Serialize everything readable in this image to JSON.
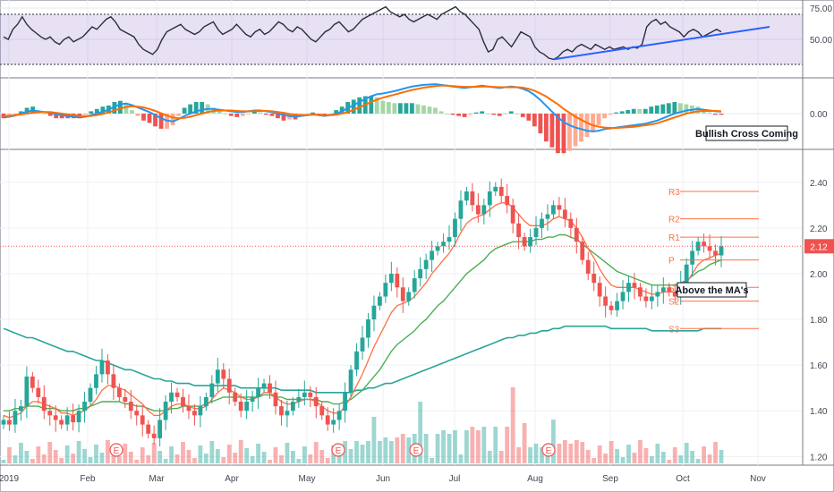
{
  "chart_data": {
    "type": "candlestick",
    "x_axis": {
      "ticks": [
        "2019",
        "Feb",
        "Mar",
        "Apr",
        "May",
        "Jun",
        "Jul",
        "Aug",
        "Sep",
        "Oct",
        "Nov"
      ]
    },
    "panels": [
      {
        "id": "rsi",
        "ylim": [
          20,
          80
        ],
        "ticks": [
          "75.00",
          "50.00"
        ],
        "tick_values": [
          75,
          50
        ],
        "band": [
          30,
          70
        ],
        "series": [
          {
            "color": "#2a2e39",
            "values": [
              52,
              50,
              58,
              62,
              68,
              62,
              58,
              55,
              52,
              50,
              52,
              48,
              46,
              50,
              52,
              48,
              50,
              52,
              56,
              60,
              58,
              62,
              66,
              68,
              64,
              58,
              56,
              54,
              52,
              46,
              42,
              40,
              38,
              42,
              50,
              56,
              58,
              60,
              62,
              58,
              56,
              54,
              56,
              60,
              62,
              64,
              58,
              54,
              56,
              58,
              62,
              58,
              54,
              52,
              56,
              58,
              54,
              56,
              60,
              64,
              62,
              58,
              56,
              60,
              58,
              54,
              50,
              48,
              52,
              56,
              58,
              62,
              64,
              60,
              56,
              58,
              62,
              66,
              68,
              70,
              72,
              74,
              76,
              72,
              70,
              68,
              70,
              66,
              64,
              66,
              68,
              70,
              68,
              66,
              70,
              72,
              74,
              76,
              72,
              70,
              66,
              62,
              58,
              48,
              40,
              42,
              50,
              52,
              48,
              44,
              50,
              56,
              54,
              52,
              44,
              40,
              38,
              35,
              34,
              36,
              40,
              42,
              40,
              44,
              46,
              44,
              42,
              46,
              44,
              42,
              44,
              42,
              43,
              44,
              42,
              44,
              43,
              46,
              60,
              64,
              66,
              62,
              64,
              60,
              58,
              56,
              52,
              56,
              58,
              56,
              52,
              54,
              56,
              58,
              56
            ]
          }
        ],
        "trendline": {
          "color": "#2962ff",
          "from": [
            118,
            34
          ],
          "to": [
            158,
            60
          ]
        }
      },
      {
        "id": "macd",
        "ticks": [
          "0.00"
        ],
        "tick_values": [
          0
        ],
        "ylim": [
          -0.09,
          0.09
        ],
        "series": [
          {
            "color": "#2196f3",
            "values": [
              -0.01,
              -0.008,
              -0.005,
              0.0,
              0.005,
              0.008,
              0.006,
              0.004,
              0.002,
              -0.002,
              -0.004,
              -0.006,
              -0.008,
              -0.01,
              -0.008,
              -0.004,
              0.0,
              0.005,
              0.01,
              0.018,
              0.024,
              0.026,
              0.022,
              0.016,
              0.01,
              0.004,
              -0.004,
              -0.012,
              -0.018,
              -0.02,
              -0.014,
              -0.006,
              0.0,
              0.006,
              0.01,
              0.012,
              0.012,
              0.01,
              0.008,
              0.006,
              0.004,
              0.004,
              0.006,
              0.008,
              0.008,
              0.006,
              0.004,
              0.0,
              -0.004,
              -0.006,
              -0.008,
              -0.006,
              -0.004,
              -0.002,
              -0.004,
              -0.006,
              -0.004,
              0.0,
              0.006,
              0.014,
              0.022,
              0.03,
              0.038,
              0.045,
              0.05,
              0.052,
              0.055,
              0.058,
              0.062,
              0.066,
              0.07,
              0.072,
              0.074,
              0.075,
              0.076,
              0.074,
              0.072,
              0.07,
              0.068,
              0.066,
              0.068,
              0.07,
              0.072,
              0.07,
              0.068,
              0.066,
              0.068,
              0.07,
              0.068,
              0.064,
              0.058,
              0.048,
              0.035,
              0.02,
              0.005,
              -0.01,
              -0.022,
              -0.03,
              -0.036,
              -0.04,
              -0.044,
              -0.046,
              -0.044,
              -0.04,
              -0.038,
              -0.036,
              -0.034,
              -0.032,
              -0.03,
              -0.028,
              -0.026,
              -0.022,
              -0.018,
              -0.012,
              -0.006,
              0.0,
              0.004,
              0.008,
              0.01,
              0.012,
              0.01,
              0.008,
              0.006,
              0.005
            ]
          },
          {
            "color": "#ff6d00",
            "values": [
              -0.006,
              -0.006,
              -0.004,
              -0.002,
              0.0,
              0.002,
              0.004,
              0.004,
              0.004,
              0.002,
              0.0,
              -0.002,
              -0.004,
              -0.006,
              -0.007,
              -0.006,
              -0.004,
              -0.001,
              0.003,
              0.008,
              0.013,
              0.017,
              0.019,
              0.018,
              0.016,
              0.012,
              0.007,
              0.001,
              -0.005,
              -0.01,
              -0.012,
              -0.011,
              -0.008,
              -0.004,
              0.0,
              0.004,
              0.007,
              0.008,
              0.008,
              0.008,
              0.007,
              0.006,
              0.006,
              0.006,
              0.007,
              0.007,
              0.006,
              0.004,
              0.002,
              -0.001,
              -0.003,
              -0.004,
              -0.004,
              -0.003,
              -0.003,
              -0.004,
              -0.004,
              -0.003,
              0.0,
              0.004,
              0.01,
              0.016,
              0.023,
              0.03,
              0.036,
              0.041,
              0.045,
              0.049,
              0.053,
              0.057,
              0.061,
              0.064,
              0.067,
              0.069,
              0.071,
              0.072,
              0.072,
              0.071,
              0.07,
              0.069,
              0.069,
              0.069,
              0.07,
              0.07,
              0.069,
              0.068,
              0.068,
              0.068,
              0.068,
              0.067,
              0.064,
              0.059,
              0.052,
              0.044,
              0.034,
              0.024,
              0.012,
              0.002,
              -0.008,
              -0.016,
              -0.024,
              -0.03,
              -0.034,
              -0.036,
              -0.037,
              -0.037,
              -0.036,
              -0.035,
              -0.034,
              -0.032,
              -0.03,
              -0.028,
              -0.025,
              -0.02,
              -0.015,
              -0.01,
              -0.005,
              0.0,
              0.003,
              0.006,
              0.007,
              0.007,
              0.007,
              0.006
            ]
          }
        ],
        "annotation": "Bullish Cross Coming"
      },
      {
        "id": "price",
        "ylim": [
          1.17,
          2.54
        ],
        "ticks": [
          "2.40",
          "2.20",
          "2.12",
          "2.00",
          "1.80",
          "1.60",
          "1.40",
          "1.20"
        ],
        "tick_values": [
          2.4,
          2.2,
          2.12,
          2.0,
          1.8,
          1.6,
          1.4,
          1.2
        ],
        "last_price": "2.12",
        "candles_close": [
          1.36,
          1.34,
          1.4,
          1.42,
          1.55,
          1.5,
          1.46,
          1.4,
          1.38,
          1.36,
          1.34,
          1.38,
          1.35,
          1.4,
          1.44,
          1.5,
          1.56,
          1.62,
          1.56,
          1.5,
          1.46,
          1.44,
          1.4,
          1.38,
          1.34,
          1.3,
          1.28,
          1.36,
          1.44,
          1.48,
          1.46,
          1.42,
          1.4,
          1.38,
          1.42,
          1.46,
          1.52,
          1.58,
          1.54,
          1.48,
          1.44,
          1.4,
          1.44,
          1.46,
          1.5,
          1.52,
          1.48,
          1.42,
          1.38,
          1.4,
          1.44,
          1.46,
          1.48,
          1.46,
          1.42,
          1.38,
          1.34,
          1.36,
          1.4,
          1.48,
          1.58,
          1.66,
          1.72,
          1.8,
          1.86,
          1.9,
          1.96,
          2.0,
          1.94,
          1.88,
          1.92,
          1.98,
          2.02,
          2.06,
          2.1,
          2.12,
          2.14,
          2.16,
          2.24,
          2.32,
          2.36,
          2.3,
          2.26,
          2.3,
          2.36,
          2.38,
          2.34,
          2.3,
          2.22,
          2.16,
          2.12,
          2.16,
          2.2,
          2.24,
          2.26,
          2.3,
          2.28,
          2.24,
          2.2,
          2.14,
          2.06,
          2.0,
          1.96,
          1.9,
          1.86,
          1.84,
          1.88,
          1.92,
          1.96,
          1.94,
          1.9,
          1.88,
          1.9,
          1.92,
          1.94,
          1.92,
          1.9,
          1.96,
          2.04,
          2.1,
          2.14,
          2.12,
          2.1,
          2.08,
          2.12
        ],
        "sma_green": [
          1.4,
          1.4,
          1.41,
          1.41,
          1.42,
          1.42,
          1.42,
          1.41,
          1.41,
          1.41,
          1.4,
          1.4,
          1.4,
          1.41,
          1.41,
          1.42,
          1.43,
          1.44,
          1.44,
          1.44,
          1.44,
          1.43,
          1.43,
          1.42,
          1.42,
          1.41,
          1.4,
          1.4,
          1.4,
          1.41,
          1.41,
          1.42,
          1.42,
          1.42,
          1.42,
          1.43,
          1.44,
          1.45,
          1.46,
          1.46,
          1.46,
          1.46,
          1.46,
          1.46,
          1.46,
          1.47,
          1.47,
          1.46,
          1.46,
          1.45,
          1.45,
          1.45,
          1.45,
          1.45,
          1.45,
          1.44,
          1.44,
          1.43,
          1.43,
          1.44,
          1.45,
          1.47,
          1.49,
          1.52,
          1.55,
          1.58,
          1.62,
          1.66,
          1.69,
          1.71,
          1.73,
          1.75,
          1.78,
          1.8,
          1.83,
          1.86,
          1.88,
          1.91,
          1.94,
          1.97,
          2.0,
          2.02,
          2.04,
          2.06,
          2.09,
          2.11,
          2.12,
          2.13,
          2.14,
          2.14,
          2.14,
          2.14,
          2.15,
          2.15,
          2.16,
          2.16,
          2.17,
          2.17,
          2.16,
          2.15,
          2.13,
          2.11,
          2.09,
          2.07,
          2.05,
          2.03,
          2.01,
          2.0,
          1.99,
          1.98,
          1.97,
          1.96,
          1.95,
          1.95,
          1.95,
          1.95,
          1.95,
          1.96,
          1.97,
          1.99,
          2.01,
          2.02,
          2.04,
          2.05,
          2.06
        ],
        "ema_orange": [
          1.38,
          1.37,
          1.38,
          1.39,
          1.42,
          1.44,
          1.44,
          1.43,
          1.42,
          1.41,
          1.39,
          1.39,
          1.38,
          1.39,
          1.4,
          1.42,
          1.45,
          1.49,
          1.51,
          1.51,
          1.5,
          1.49,
          1.47,
          1.45,
          1.43,
          1.4,
          1.38,
          1.38,
          1.4,
          1.42,
          1.43,
          1.43,
          1.42,
          1.41,
          1.41,
          1.42,
          1.45,
          1.48,
          1.5,
          1.49,
          1.48,
          1.46,
          1.45,
          1.45,
          1.46,
          1.48,
          1.48,
          1.46,
          1.44,
          1.43,
          1.43,
          1.44,
          1.45,
          1.45,
          1.44,
          1.42,
          1.4,
          1.39,
          1.39,
          1.42,
          1.46,
          1.51,
          1.56,
          1.62,
          1.68,
          1.73,
          1.78,
          1.83,
          1.86,
          1.87,
          1.88,
          1.9,
          1.93,
          1.96,
          2.0,
          2.03,
          2.06,
          2.09,
          2.13,
          2.18,
          2.22,
          2.24,
          2.25,
          2.26,
          2.28,
          2.3,
          2.31,
          2.31,
          2.29,
          2.26,
          2.23,
          2.21,
          2.21,
          2.21,
          2.22,
          2.24,
          2.25,
          2.24,
          2.23,
          2.2,
          2.16,
          2.11,
          2.07,
          2.02,
          1.98,
          1.95,
          1.94,
          1.94,
          1.94,
          1.94,
          1.93,
          1.92,
          1.91,
          1.91,
          1.92,
          1.92,
          1.92,
          1.93,
          1.96,
          2.0,
          2.04,
          2.06,
          2.07,
          2.08,
          2.09
        ],
        "sma_teal": [
          1.76,
          1.75,
          1.74,
          1.73,
          1.72,
          1.72,
          1.71,
          1.7,
          1.69,
          1.68,
          1.67,
          1.66,
          1.66,
          1.65,
          1.64,
          1.63,
          1.62,
          1.62,
          1.61,
          1.6,
          1.59,
          1.58,
          1.58,
          1.57,
          1.56,
          1.55,
          1.54,
          1.54,
          1.53,
          1.53,
          1.52,
          1.52,
          1.52,
          1.51,
          1.51,
          1.51,
          1.51,
          1.51,
          1.51,
          1.51,
          1.51,
          1.5,
          1.5,
          1.5,
          1.5,
          1.5,
          1.5,
          1.5,
          1.49,
          1.49,
          1.49,
          1.49,
          1.49,
          1.49,
          1.48,
          1.48,
          1.48,
          1.48,
          1.48,
          1.48,
          1.48,
          1.49,
          1.49,
          1.5,
          1.5,
          1.51,
          1.52,
          1.52,
          1.53,
          1.54,
          1.55,
          1.56,
          1.57,
          1.58,
          1.59,
          1.6,
          1.61,
          1.62,
          1.63,
          1.64,
          1.65,
          1.66,
          1.67,
          1.68,
          1.69,
          1.7,
          1.71,
          1.72,
          1.72,
          1.73,
          1.73,
          1.74,
          1.74,
          1.75,
          1.75,
          1.76,
          1.76,
          1.77,
          1.77,
          1.77,
          1.77,
          1.77,
          1.77,
          1.77,
          1.77,
          1.76,
          1.76,
          1.76,
          1.76,
          1.76,
          1.76,
          1.76,
          1.75,
          1.75,
          1.75,
          1.75,
          1.75,
          1.75,
          1.75,
          1.75,
          1.75,
          1.76,
          1.76,
          1.76,
          1.76
        ],
        "pivots": [
          {
            "label": "R3",
            "value": 2.36
          },
          {
            "label": "R2",
            "value": 2.24
          },
          {
            "label": "R1",
            "value": 2.16
          },
          {
            "label": "P",
            "value": 2.06
          },
          {
            "label": "S1",
            "value": 1.94
          },
          {
            "label": "S2",
            "value": 1.88
          },
          {
            "label": "S3",
            "value": 1.76
          }
        ],
        "earnings_markers": [
          "E",
          "E",
          "E",
          "E"
        ],
        "annotation": "Above the MA's"
      }
    ],
    "legend": "none",
    "grid": true
  }
}
